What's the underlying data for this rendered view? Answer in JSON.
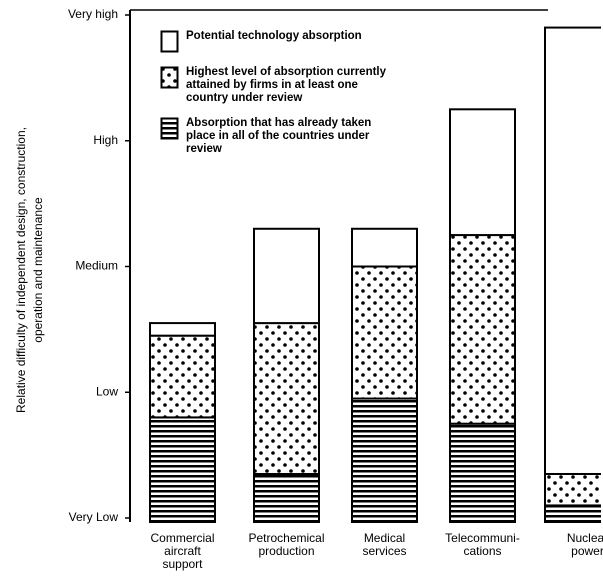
{
  "chart_data": {
    "type": "stacked_bar",
    "ylabel": [
      "Relative difficulty of independent design, construction,",
      "operation and maintenance"
    ],
    "categories": [
      [
        "Commercial",
        "aircraft",
        "support"
      ],
      [
        "Petrochemical",
        "production"
      ],
      [
        "Medical",
        "services"
      ],
      [
        "Telecommuni-",
        "cations"
      ],
      [
        "Nuclear",
        "power"
      ]
    ],
    "series": [
      {
        "name": "Absorption that has already taken place in all of the countries under review",
        "color": "#000000",
        "pattern": "stripes",
        "values": [
          0.8,
          0.35,
          0.95,
          0.75,
          0.1
        ]
      },
      {
        "name": "Highest level of absorption currently attained by firms in at least one country under review",
        "color": "#000000",
        "pattern": "dots",
        "values": [
          0.65,
          1.2,
          1.05,
          1.5,
          0.25
        ]
      },
      {
        "name": "Potential technology absorption",
        "color": "#000000",
        "pattern": "none",
        "values": [
          0.1,
          0.75,
          0.3,
          1.0,
          3.55
        ]
      }
    ],
    "ylim": [
      0,
      4
    ],
    "yticks": [
      {
        "value": 0,
        "label": "Very Low"
      },
      {
        "value": 1,
        "label": "Low"
      },
      {
        "value": 2,
        "label": "Medium"
      },
      {
        "value": 3,
        "label": "High"
      },
      {
        "value": 4,
        "label": "Very high"
      }
    ]
  }
}
